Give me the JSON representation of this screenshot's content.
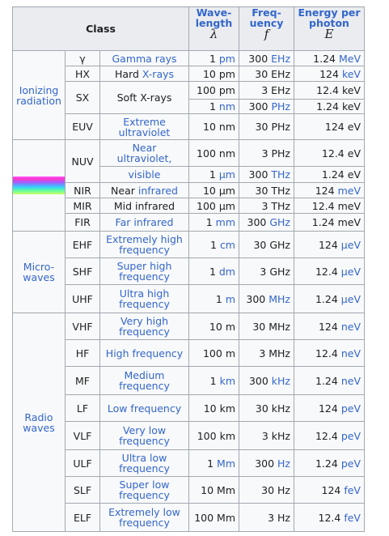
{
  "header": {
    "class": "Class",
    "wavelength_l1": "Wave-",
    "wavelength_l2": "length",
    "wavelength_sym": "λ",
    "frequency_l1": "Freq-",
    "frequency_l2": "uency",
    "frequency_sym": "f",
    "energy_l1": "Energy per",
    "energy_l2": "photon",
    "energy_sym": "E"
  },
  "groups": {
    "ionizing_l1": "Ionizing",
    "ionizing_l2": "radiation",
    "microwaves_l1": "Micro-",
    "microwaves_l2": "waves",
    "radio_l1": "Radio",
    "radio_l2": "waves"
  },
  "rows": [
    {
      "abbr": "γ",
      "name_pre": "",
      "name_link": "Gamma rays",
      "name_post": "",
      "wl_num": "1",
      "wl_unit": "pm",
      "fr_num": "300",
      "fr_unit": "EHz",
      "en_num": "1.24",
      "en_unit": "MeV"
    },
    {
      "abbr": "HX",
      "name_pre": "Hard ",
      "name_link": "X-rays",
      "name_post": "",
      "wl_num": "10",
      "wl_unit": "pm",
      "fr_num": "30",
      "fr_unit": "EHz",
      "en_num": "124",
      "en_unit": "keV"
    },
    {
      "abbr": "SX",
      "name_pre": "Soft X-rays",
      "name_link": "",
      "name_post": "",
      "wl_num": "100",
      "wl_unit": "pm",
      "fr_num": "3",
      "fr_unit": "EHz",
      "en_num": "12.4",
      "en_unit": "keV"
    },
    {
      "abbr": "",
      "name_pre": "",
      "name_link": "",
      "name_post": "",
      "wl_num": "1",
      "wl_unit": "nm",
      "fr_num": "300",
      "fr_unit": "PHz",
      "en_num": "1.24",
      "en_unit": "keV"
    },
    {
      "abbr": "EUV",
      "name_pre": "",
      "name_link": "Extreme ultraviolet",
      "name_post": "",
      "wl_num": "10",
      "wl_unit": "nm",
      "fr_num": "30",
      "fr_unit": "PHz",
      "en_num": "124",
      "en_unit": "eV"
    },
    {
      "abbr": "NUV",
      "name_pre": "",
      "name_link": "Near ultraviolet,",
      "name_post": "",
      "wl_num": "100",
      "wl_unit": "nm",
      "fr_num": "3",
      "fr_unit": "PHz",
      "en_num": "12.4",
      "en_unit": "eV"
    },
    {
      "abbr": "",
      "name_pre": "",
      "name_link": "visible",
      "name_post": "",
      "wl_num": "1",
      "wl_unit": "μm",
      "fr_num": "300",
      "fr_unit": "THz",
      "en_num": "1.24",
      "en_unit": "eV"
    },
    {
      "abbr": "NIR",
      "name_pre": "Near ",
      "name_link": "infrared",
      "name_post": "",
      "wl_num": "10",
      "wl_unit": "μm",
      "fr_num": "30",
      "fr_unit": "THz",
      "en_num": "124",
      "en_unit": "meV"
    },
    {
      "abbr": "MIR",
      "name_pre": "Mid infrared",
      "name_link": "",
      "name_post": "",
      "wl_num": "100",
      "wl_unit": "μm",
      "fr_num": "3",
      "fr_unit": "THz",
      "en_num": "12.4",
      "en_unit": "meV"
    },
    {
      "abbr": "FIR",
      "name_pre": "",
      "name_link": "Far infrared",
      "name_post": "",
      "wl_num": "1",
      "wl_unit": "mm",
      "fr_num": "300",
      "fr_unit": "GHz",
      "en_num": "1.24",
      "en_unit": "meV"
    },
    {
      "abbr": "EHF",
      "name_pre": "",
      "name_link": "Extremely high frequency",
      "name_post": "",
      "wl_num": "1",
      "wl_unit": "cm",
      "fr_num": "30",
      "fr_unit": "GHz",
      "en_num": "124",
      "en_unit": "μeV"
    },
    {
      "abbr": "SHF",
      "name_pre": "",
      "name_link": "Super high frequency",
      "name_post": "",
      "wl_num": "1",
      "wl_unit": "dm",
      "fr_num": "3",
      "fr_unit": "GHz",
      "en_num": "12.4",
      "en_unit": "μeV"
    },
    {
      "abbr": "UHF",
      "name_pre": "",
      "name_link": "Ultra high frequency",
      "name_post": "",
      "wl_num": "1",
      "wl_unit": "m",
      "fr_num": "300",
      "fr_unit": "MHz",
      "en_num": "1.24",
      "en_unit": "μeV"
    },
    {
      "abbr": "VHF",
      "name_pre": "",
      "name_link": "Very high frequency",
      "name_post": "",
      "wl_num": "10",
      "wl_unit": "m",
      "fr_num": "30",
      "fr_unit": "MHz",
      "en_num": "124",
      "en_unit": "neV"
    },
    {
      "abbr": "HF",
      "name_pre": "",
      "name_link": "High frequency",
      "name_post": "",
      "wl_num": "100",
      "wl_unit": "m",
      "fr_num": "3",
      "fr_unit": "MHz",
      "en_num": "12.4",
      "en_unit": "neV"
    },
    {
      "abbr": "MF",
      "name_pre": "",
      "name_link": "Medium frequency",
      "name_post": "",
      "wl_num": "1",
      "wl_unit": "km",
      "fr_num": "300",
      "fr_unit": "kHz",
      "en_num": "1.24",
      "en_unit": "neV"
    },
    {
      "abbr": "LF",
      "name_pre": "",
      "name_link": "Low frequency",
      "name_post": "",
      "wl_num": "10",
      "wl_unit": "km",
      "fr_num": "30",
      "fr_unit": "kHz",
      "en_num": "124",
      "en_unit": "peV"
    },
    {
      "abbr": "VLF",
      "name_pre": "",
      "name_link": "Very low frequency",
      "name_post": "",
      "wl_num": "100",
      "wl_unit": "km",
      "fr_num": "3",
      "fr_unit": "kHz",
      "en_num": "12.4",
      "en_unit": "peV"
    },
    {
      "abbr": "ULF",
      "name_pre": "",
      "name_link": "Ultra low frequency",
      "name_post": "",
      "wl_num": "1",
      "wl_unit": "Mm",
      "fr_num": "300",
      "fr_unit": "Hz",
      "en_num": "1.24",
      "en_unit": "peV"
    },
    {
      "abbr": "SLF",
      "name_pre": "",
      "name_link": "Super low frequency",
      "name_post": "",
      "wl_num": "10",
      "wl_unit": "Mm",
      "fr_num": "30",
      "fr_unit": "Hz",
      "en_num": "124",
      "en_unit": "feV"
    },
    {
      "abbr": "ELF",
      "name_pre": "",
      "name_link": "Extremely low frequency",
      "name_post": "",
      "wl_num": "100",
      "wl_unit": "Mm",
      "fr_num": "3",
      "fr_unit": "Hz",
      "en_num": "12.4",
      "en_unit": "feV"
    }
  ],
  "colors": {
    "link": "#3366cc",
    "border": "#a2a9b1",
    "header_bg": "#eaecf0",
    "cell_bg": "#f8f9fa"
  }
}
